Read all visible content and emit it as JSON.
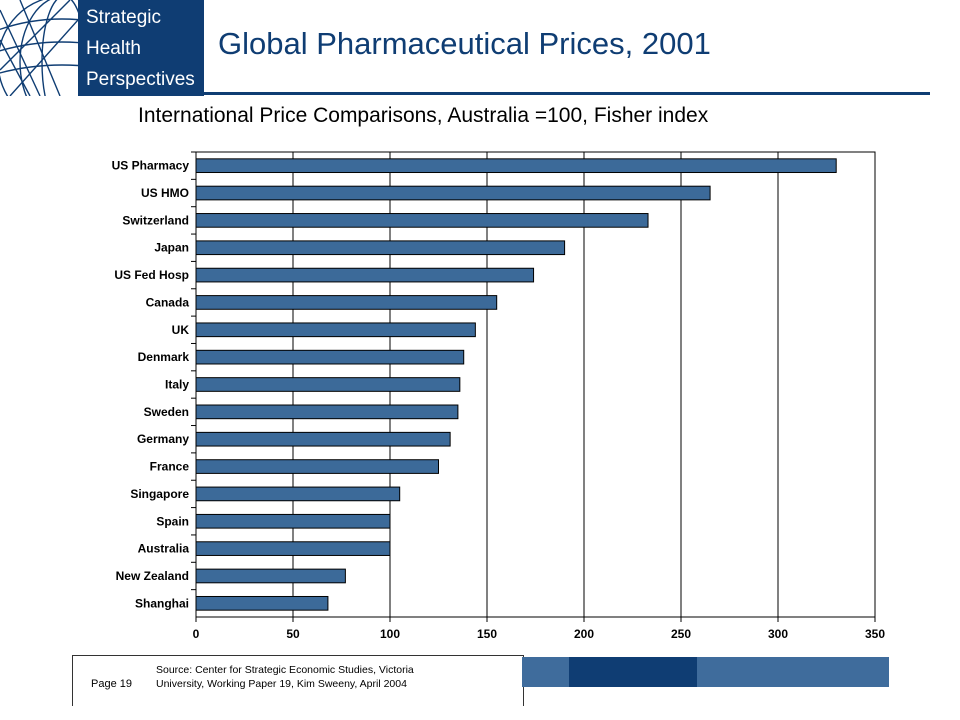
{
  "logo": {
    "line1": "Strategic",
    "line2": "Health",
    "line3": "Perspectives"
  },
  "title": "Global Pharmaceutical Prices, 2001",
  "subtitle": "International Price Comparisons, Australia =100, Fisher index",
  "chart_data": {
    "type": "bar",
    "orientation": "horizontal",
    "categories": [
      "US Pharmacy",
      "US HMO",
      "Switzerland",
      "Japan",
      "US Fed Hosp",
      "Canada",
      "UK",
      "Denmark",
      "Italy",
      "Sweden",
      "Germany",
      "France",
      "Singapore",
      "Spain",
      "Australia",
      "New Zealand",
      "Shanghai"
    ],
    "values": [
      330,
      265,
      233,
      190,
      174,
      155,
      144,
      138,
      136,
      135,
      131,
      125,
      105,
      100,
      100,
      77,
      68
    ],
    "xlim": [
      0,
      350
    ],
    "xticks": [
      "0",
      "50",
      "100",
      "150",
      "200",
      "250",
      "300",
      "350"
    ],
    "grid": true,
    "bar_color": "#3c6a99",
    "title": "",
    "xlabel": "",
    "ylabel": ""
  },
  "footer": {
    "page": "Page 19",
    "source_line1": "Source:  Center for Strategic Economic Studies, Victoria",
    "source_line2": "University, Working Paper 19, Kim Sweeny, April 2004"
  },
  "colors": {
    "brand_navy": "#0f3d73",
    "band_blue": "#3f6c9c"
  }
}
